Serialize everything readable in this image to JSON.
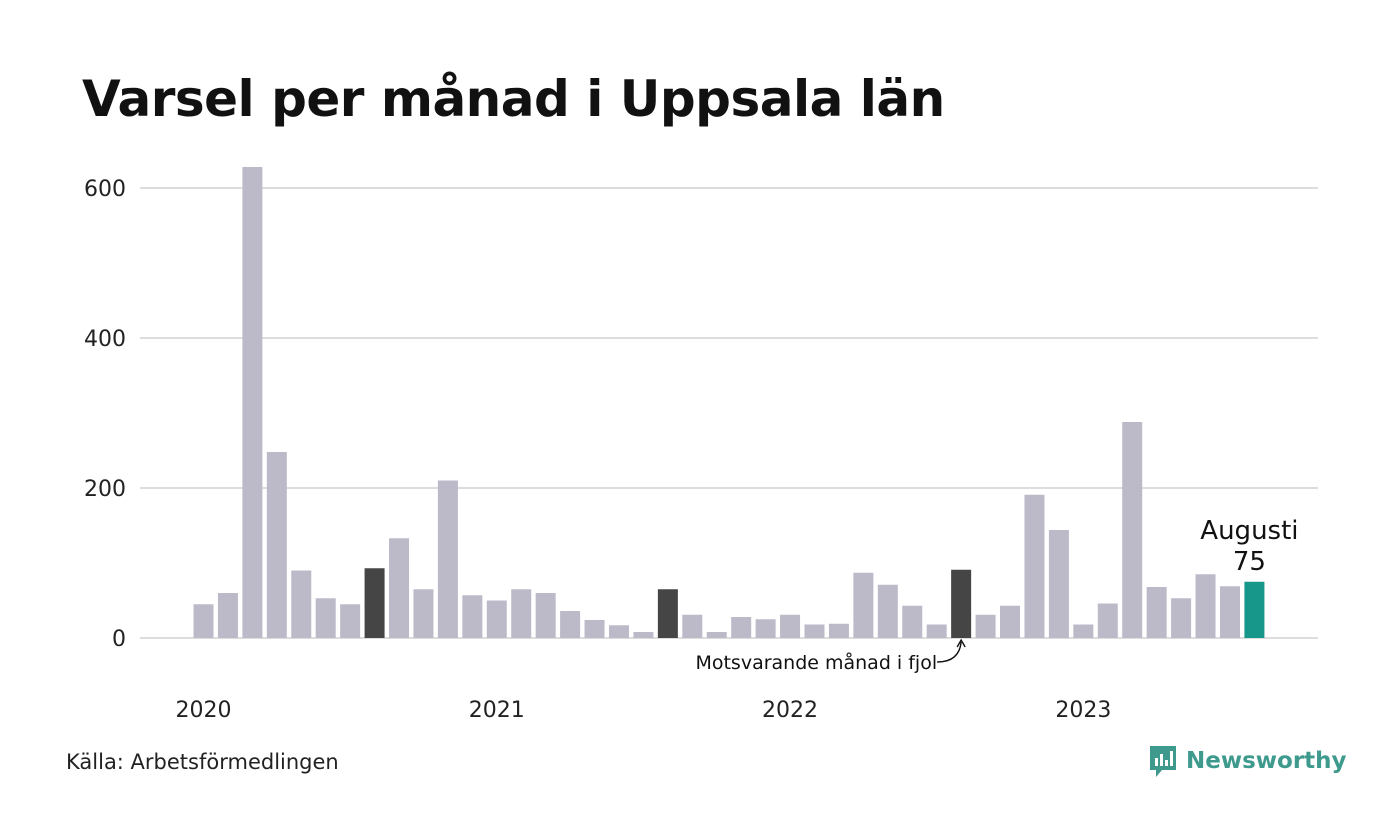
{
  "title": "Varsel per månad i Uppsala län",
  "source": "Källa: Arbetsförmedlingen",
  "brand": "Newsworthy",
  "colors": {
    "default": "#bcbac8",
    "previous_year": "#454545",
    "current": "#17968a",
    "grid": "#dddddd",
    "brand": "#3f9a8e"
  },
  "chart_data": {
    "type": "bar",
    "title": "Varsel per månad i Uppsala län",
    "y_ticks": [
      0,
      200,
      400,
      600
    ],
    "ylim": [
      0,
      650
    ],
    "x_tick_labels": [
      {
        "label": "2020",
        "index": 0
      },
      {
        "label": "2021",
        "index": 12
      },
      {
        "label": "2022",
        "index": 24
      },
      {
        "label": "2023",
        "index": 36
      }
    ],
    "grid": true,
    "series": [
      {
        "values": [
          45,
          60,
          628,
          248,
          90,
          53,
          45,
          93,
          133,
          65,
          210,
          57,
          50,
          65,
          60,
          36,
          24,
          17,
          8,
          65,
          31,
          8,
          28,
          25,
          31,
          18,
          19,
          87,
          71,
          43,
          18,
          91,
          31,
          43,
          191,
          144,
          18,
          46,
          288,
          68,
          53,
          85,
          69,
          75
        ]
      }
    ],
    "highlighted_previous_year_indices": [
      7,
      19,
      31
    ],
    "current_index": 43,
    "annotation": "Motsvarande månad i fjol",
    "highlight_label": {
      "month": "Augusti",
      "value": "75"
    }
  }
}
